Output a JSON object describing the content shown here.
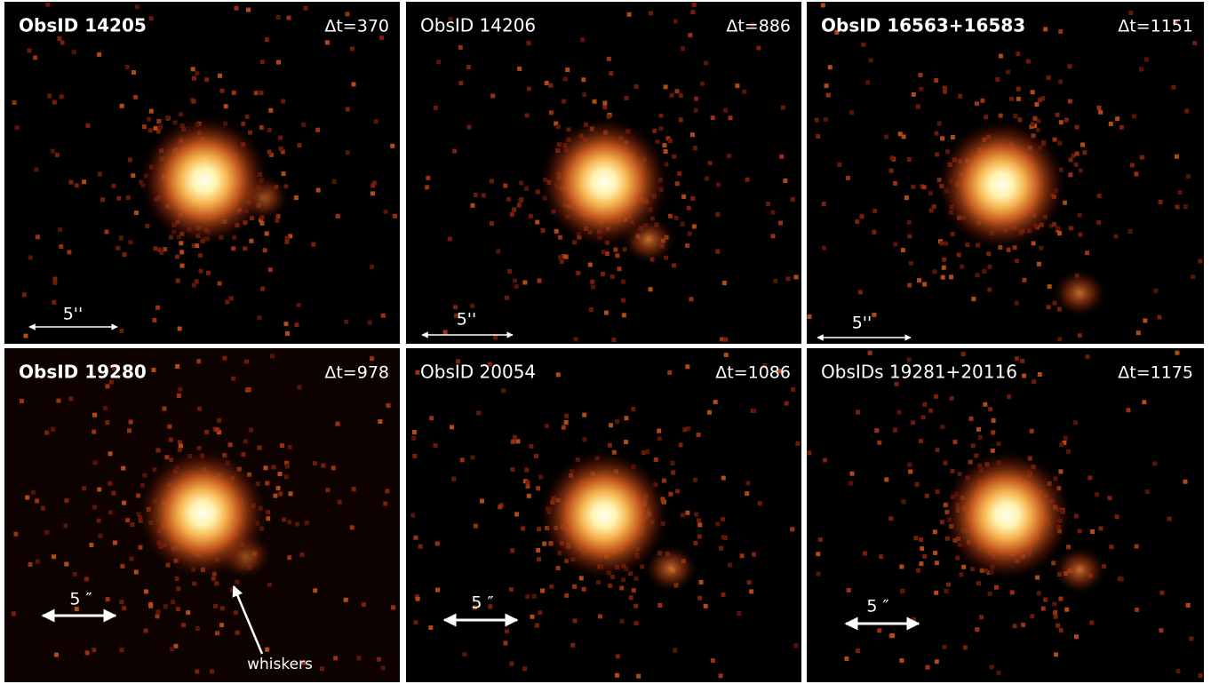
{
  "panels": [
    {
      "title": "ObsID 14205",
      "dt": "Δt=370",
      "scale": "5''"
    },
    {
      "title": "ObsID 14206",
      "dt": "Δt=886",
      "scale": "5''"
    },
    {
      "title": "ObsID 16563+16583",
      "dt": "Δt=1151",
      "scale": "5''"
    },
    {
      "title": "ObsID 19280",
      "dt": "Δt=978",
      "scale": "5 ″"
    },
    {
      "title": "ObsID 20054",
      "dt": "Δt=1086",
      "scale": "5 ″"
    },
    {
      "title": "ObsIDs 19281+20116",
      "dt": "Δt=1175",
      "scale": "5 ″"
    }
  ],
  "annotation": "whiskers"
}
